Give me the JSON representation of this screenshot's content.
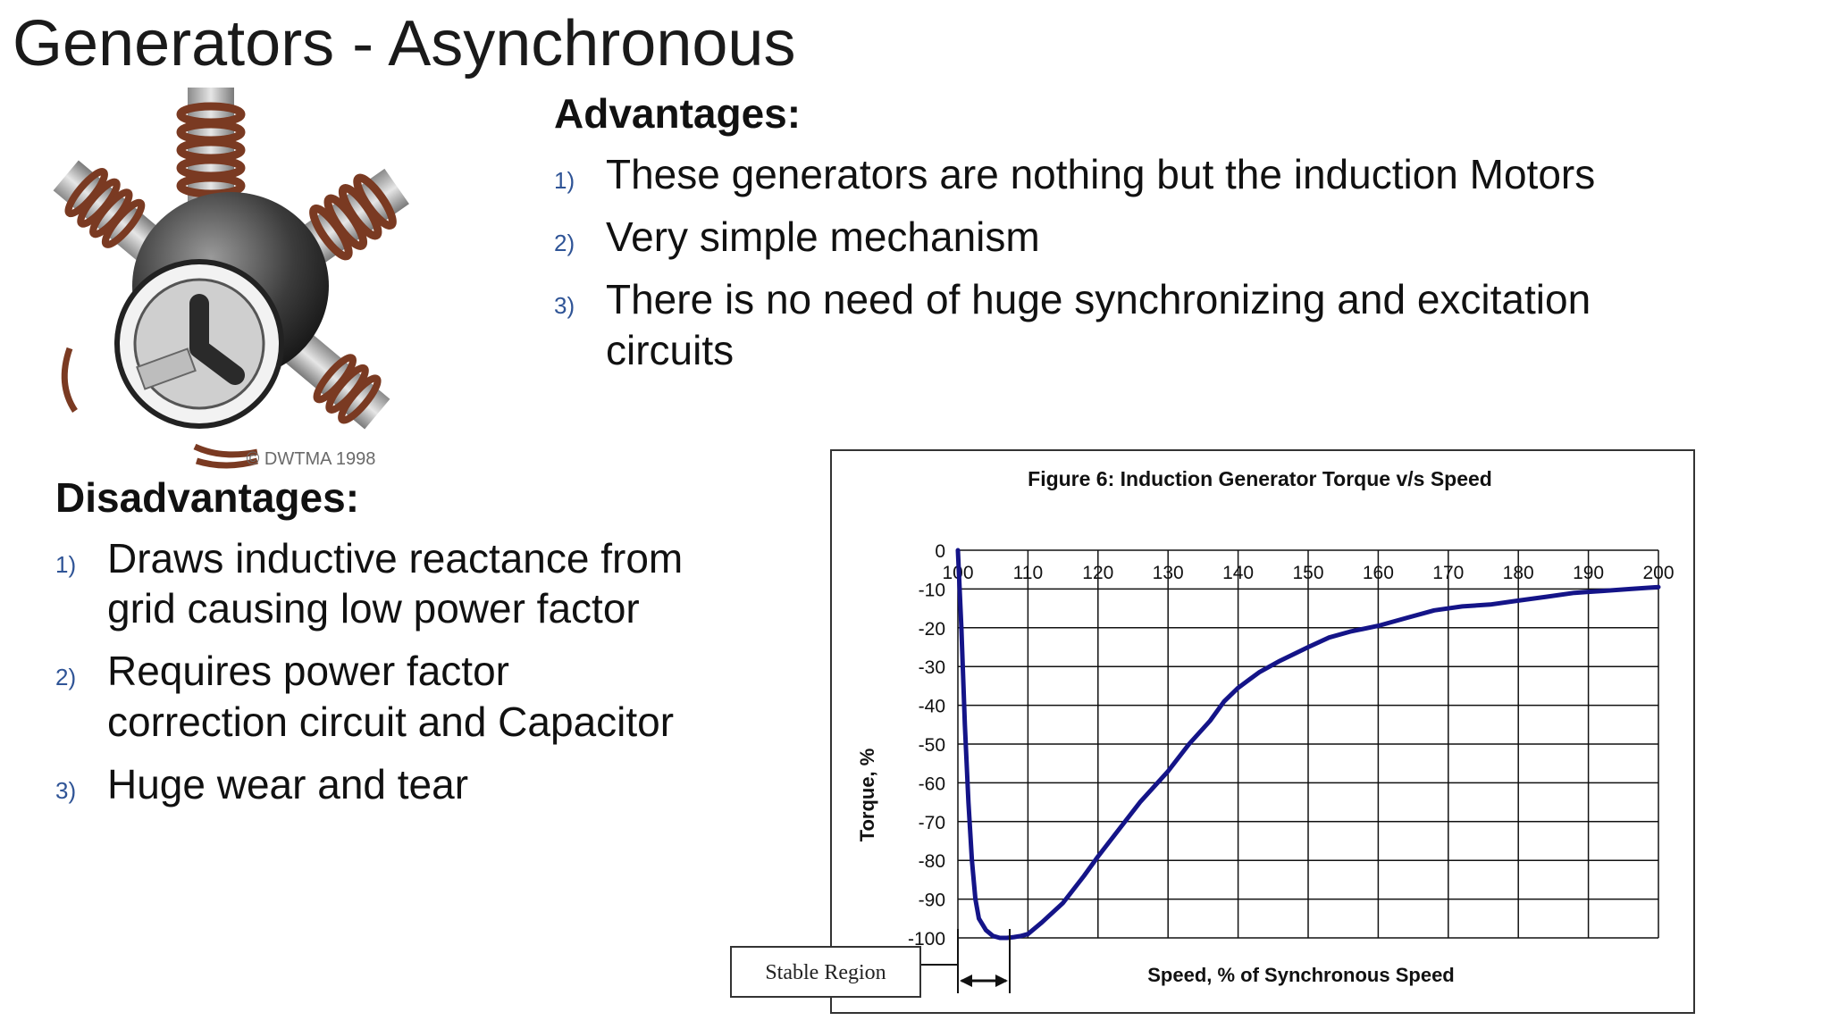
{
  "slide": {
    "title": "Generators - Asynchronous"
  },
  "image": {
    "caption": "© DWTMA 1998"
  },
  "advantages": {
    "heading": "Advantages:",
    "items": [
      {
        "num": "1)",
        "text": "These generators are nothing but the induction Motors"
      },
      {
        "num": "2)",
        "text": "Very simple mechanism"
      },
      {
        "num": "3)",
        "text": "There is no need of huge synchronizing and excitation\ncircuits"
      }
    ]
  },
  "disadvantages": {
    "heading": "Disadvantages:",
    "items": [
      {
        "num": "1)",
        "text": "Draws inductive reactance from\ngrid causing low power factor"
      },
      {
        "num": "2)",
        "text": "Requires power factor\ncorrection circuit and Capacitor"
      },
      {
        "num": "3)",
        "text": "Huge wear and tear"
      }
    ]
  },
  "chart_data": {
    "type": "line",
    "title": "Figure 6: Induction Generator Torque v/s Speed",
    "xlabel": "Speed, % of Synchronous Speed",
    "ylabel": "Torque, %",
    "xlim": [
      100,
      200
    ],
    "ylim": [
      -100,
      0
    ],
    "x_ticks": [
      "100",
      "110",
      "120",
      "130",
      "140",
      "150",
      "160",
      "170",
      "180",
      "190",
      "200"
    ],
    "y_ticks": [
      "0",
      "-10",
      "-20",
      "-30",
      "-40",
      "-50",
      "-60",
      "-70",
      "-80",
      "-90",
      "-100"
    ],
    "grid": true,
    "line_color": "#141488",
    "annotation": "Stable Region",
    "series": [
      {
        "x": [
          100,
          100.5,
          101,
          101.5,
          102,
          102.5,
          103,
          104,
          105,
          106,
          107,
          108,
          109,
          110,
          112,
          115,
          118,
          120,
          123,
          126,
          130,
          133,
          136,
          138,
          140,
          143,
          146,
          150,
          153,
          156,
          160,
          164,
          168,
          172,
          176,
          180,
          184,
          188,
          192,
          196,
          200
        ],
        "y": [
          0,
          -20,
          -45,
          -65,
          -80,
          -90,
          -95,
          -98,
          -99.5,
          -100,
          -100,
          -99.8,
          -99.5,
          -99,
          -96,
          -91,
          -84,
          -79,
          -72,
          -65,
          -57,
          -50,
          -44,
          -39,
          -35.5,
          -31.5,
          -28.5,
          -25,
          -22.5,
          -21,
          -19.5,
          -17.5,
          -15.5,
          -14.5,
          -14,
          -13,
          -12,
          -11,
          -10.5,
          -10,
          -9.5
        ]
      }
    ]
  }
}
